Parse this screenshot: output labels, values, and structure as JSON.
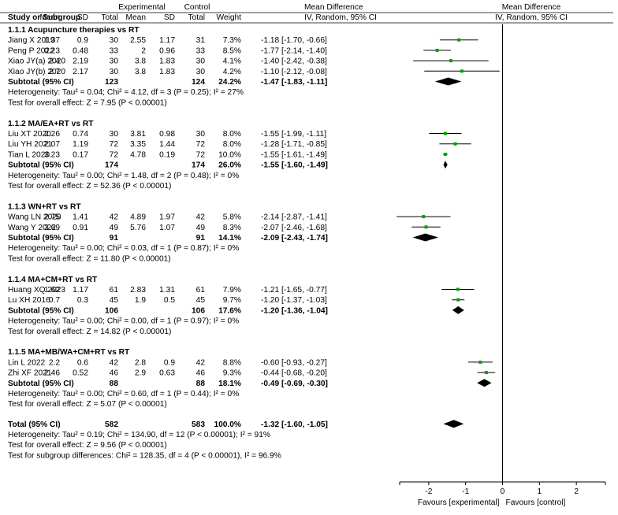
{
  "chart_data": {
    "type": "forest",
    "headers": {
      "experimental": "Experimental",
      "control": "Control",
      "mean_difference": "Mean Difference",
      "study_or_subgroup": "Study or Subgroup",
      "mean": "Mean",
      "sd": "SD",
      "total": "Total",
      "weight": "Weight",
      "method": "IV, Random, 95% CI"
    },
    "groups": [
      {
        "title": "1.1.1 Acupuncture therapies vs RT",
        "studies": [
          {
            "name": "Jiang X 2019",
            "e_mean": "1.37",
            "e_sd": "0.9",
            "e_total": "30",
            "c_mean": "2.55",
            "c_sd": "1.17",
            "c_total": "31",
            "weight": "7.3%",
            "ci_text": "-1.18 [-1.70, -0.66]",
            "md": -1.18,
            "lo": -1.7,
            "hi": -0.66
          },
          {
            "name": "Peng P 2022",
            "e_mean": "0.23",
            "e_sd": "0.48",
            "e_total": "33",
            "c_mean": "2",
            "c_sd": "0.96",
            "c_total": "33",
            "weight": "8.5%",
            "ci_text": "-1.77 [-2.14, -1.40]",
            "md": -1.77,
            "lo": -2.14,
            "hi": -1.4
          },
          {
            "name": "Xiao JY(a) 2020",
            "e_mean": "2.4",
            "e_sd": "2.19",
            "e_total": "30",
            "c_mean": "3.8",
            "c_sd": "1.83",
            "c_total": "30",
            "weight": "4.1%",
            "ci_text": "-1.40 [-2.42, -0.38]",
            "md": -1.4,
            "lo": -2.42,
            "hi": -0.38
          },
          {
            "name": "Xiao JY(b) 2020",
            "e_mean": "2.7",
            "e_sd": "2.17",
            "e_total": "30",
            "c_mean": "3.8",
            "c_sd": "1.83",
            "c_total": "30",
            "weight": "4.2%",
            "ci_text": "-1.10 [-2.12, -0.08]",
            "md": -1.1,
            "lo": -2.12,
            "hi": -0.08
          }
        ],
        "subtotal": {
          "label": "Subtotal (95% CI)",
          "e_total": "123",
          "c_total": "124",
          "weight": "24.2%",
          "ci_text": "-1.47 [-1.83, -1.11]",
          "md": -1.47,
          "lo": -1.83,
          "hi": -1.11
        },
        "heterogeneity": "Heterogeneity: Tau² = 0.04; Chi² = 4.12, df = 3 (P = 0.25); I² = 27%",
        "overall_test": "Test for overall effect: Z = 7.95 (P < 0.00001)"
      },
      {
        "title": "1.1.2 MA/EA+RT vs RT",
        "studies": [
          {
            "name": "Liu XT 2020",
            "e_mean": "2.26",
            "e_sd": "0.74",
            "e_total": "30",
            "c_mean": "3.81",
            "c_sd": "0.98",
            "c_total": "30",
            "weight": "8.0%",
            "ci_text": "-1.55 [-1.99, -1.11]",
            "md": -1.55,
            "lo": -1.99,
            "hi": -1.11
          },
          {
            "name": "Liu YH 2021",
            "e_mean": "2.07",
            "e_sd": "1.19",
            "e_total": "72",
            "c_mean": "3.35",
            "c_sd": "1.44",
            "c_total": "72",
            "weight": "8.0%",
            "ci_text": "-1.28 [-1.71, -0.85]",
            "md": -1.28,
            "lo": -1.71,
            "hi": -0.85
          },
          {
            "name": "Tian L 2020",
            "e_mean": "3.23",
            "e_sd": "0.17",
            "e_total": "72",
            "c_mean": "4.78",
            "c_sd": "0.19",
            "c_total": "72",
            "weight": "10.0%",
            "ci_text": "-1.55 [-1.61, -1.49]",
            "md": -1.55,
            "lo": -1.61,
            "hi": -1.49
          }
        ],
        "subtotal": {
          "label": "Subtotal (95% CI)",
          "e_total": "174",
          "c_total": "174",
          "weight": "26.0%",
          "ci_text": "-1.55 [-1.60, -1.49]",
          "md": -1.55,
          "lo": -1.6,
          "hi": -1.49
        },
        "heterogeneity": "Heterogeneity: Tau² = 0.00; Chi² = 1.48, df = 2 (P = 0.48); I² = 0%",
        "overall_test": "Test for overall effect: Z = 52.36 (P < 0.00001)"
      },
      {
        "title": "1.1.3 WN+RT vs RT",
        "studies": [
          {
            "name": "Wang LN 2020",
            "e_mean": "2.75",
            "e_sd": "1.41",
            "e_total": "42",
            "c_mean": "4.89",
            "c_sd": "1.97",
            "c_total": "42",
            "weight": "5.8%",
            "ci_text": "-2.14 [-2.87, -1.41]",
            "md": -2.14,
            "lo": -2.87,
            "hi": -1.41
          },
          {
            "name": "Wang Y 2022",
            "e_mean": "3.69",
            "e_sd": "0.91",
            "e_total": "49",
            "c_mean": "5.76",
            "c_sd": "1.07",
            "c_total": "49",
            "weight": "8.3%",
            "ci_text": "-2.07 [-2.46, -1.68]",
            "md": -2.07,
            "lo": -2.46,
            "hi": -1.68
          }
        ],
        "subtotal": {
          "label": "Subtotal (95% CI)",
          "e_total": "91",
          "c_total": "91",
          "weight": "14.1%",
          "ci_text": "-2.09 [-2.43, -1.74]",
          "md": -2.09,
          "lo": -2.43,
          "hi": -1.74
        },
        "heterogeneity": "Heterogeneity: Tau² = 0.00; Chi² = 0.03, df = 1 (P = 0.87); I² = 0%",
        "overall_test": "Test for overall effect: Z = 11.80 (P < 0.00001)"
      },
      {
        "title": "1.1.4 MA+CM+RT vs RT",
        "studies": [
          {
            "name": "Huang XQ 2023",
            "e_mean": "1.62",
            "e_sd": "1.17",
            "e_total": "61",
            "c_mean": "2.83",
            "c_sd": "1.31",
            "c_total": "61",
            "weight": "7.9%",
            "ci_text": "-1.21 [-1.65, -0.77]",
            "md": -1.21,
            "lo": -1.65,
            "hi": -0.77
          },
          {
            "name": "Lu XH 2016",
            "e_mean": "0.7",
            "e_sd": "0.3",
            "e_total": "45",
            "c_mean": "1.9",
            "c_sd": "0.5",
            "c_total": "45",
            "weight": "9.7%",
            "ci_text": "-1.20 [-1.37, -1.03]",
            "md": -1.2,
            "lo": -1.37,
            "hi": -1.03
          }
        ],
        "subtotal": {
          "label": "Subtotal (95% CI)",
          "e_total": "106",
          "c_total": "106",
          "weight": "17.6%",
          "ci_text": "-1.20 [-1.36, -1.04]",
          "md": -1.2,
          "lo": -1.36,
          "hi": -1.04
        },
        "heterogeneity": "Heterogeneity: Tau² = 0.00; Chi² = 0.00, df = 1 (P = 0.97); I² = 0%",
        "overall_test": "Test for overall effect: Z = 14.82 (P < 0.00001)"
      },
      {
        "title": "1.1.5 MA+MB/WA+CM+RT vs RT",
        "studies": [
          {
            "name": "Lin L 2022",
            "e_mean": "2.2",
            "e_sd": "0.6",
            "e_total": "42",
            "c_mean": "2.8",
            "c_sd": "0.9",
            "c_total": "42",
            "weight": "8.8%",
            "ci_text": "-0.60 [-0.93, -0.27]",
            "md": -0.6,
            "lo": -0.93,
            "hi": -0.27
          },
          {
            "name": "Zhi XF 2021",
            "e_mean": "2.46",
            "e_sd": "0.52",
            "e_total": "46",
            "c_mean": "2.9",
            "c_sd": "0.63",
            "c_total": "46",
            "weight": "9.3%",
            "ci_text": "-0.44 [-0.68, -0.20]",
            "md": -0.44,
            "lo": -0.68,
            "hi": -0.2
          }
        ],
        "subtotal": {
          "label": "Subtotal (95% CI)",
          "e_total": "88",
          "c_total": "88",
          "weight": "18.1%",
          "ci_text": "-0.49 [-0.69, -0.30]",
          "md": -0.49,
          "lo": -0.69,
          "hi": -0.3
        },
        "heterogeneity": "Heterogeneity: Tau² = 0.00; Chi² = 0.60, df = 1 (P = 0.44); I² = 0%",
        "overall_test": "Test for overall effect: Z = 5.07 (P < 0.00001)"
      }
    ],
    "total": {
      "label": "Total (95% CI)",
      "e_total": "582",
      "c_total": "583",
      "weight": "100.0%",
      "ci_text": "-1.32 [-1.60, -1.05]",
      "md": -1.32,
      "lo": -1.6,
      "hi": -1.05
    },
    "total_heterogeneity": "Heterogeneity: Tau² = 0.19; Chi² = 134.90, df = 12 (P < 0.00001); I² = 91%",
    "total_overall_test": "Test for overall effect: Z = 9.56 (P < 0.00001)",
    "subgroup_test": "Test for subgroup differences: Chi² = 128.35, df = 4 (P < 0.00001), I² = 96.9%",
    "axis": {
      "min": -3,
      "max": 3,
      "ticks": [
        -2,
        -1,
        0,
        1,
        2
      ],
      "tick_labels": [
        "-2",
        "-1",
        "0",
        "1",
        "2"
      ]
    },
    "favours_left": "Favours [experimental]",
    "favours_right": "Favours [control]",
    "colors": {
      "point": "#00a000",
      "line": "#000000",
      "diamond": "#000000"
    }
  }
}
